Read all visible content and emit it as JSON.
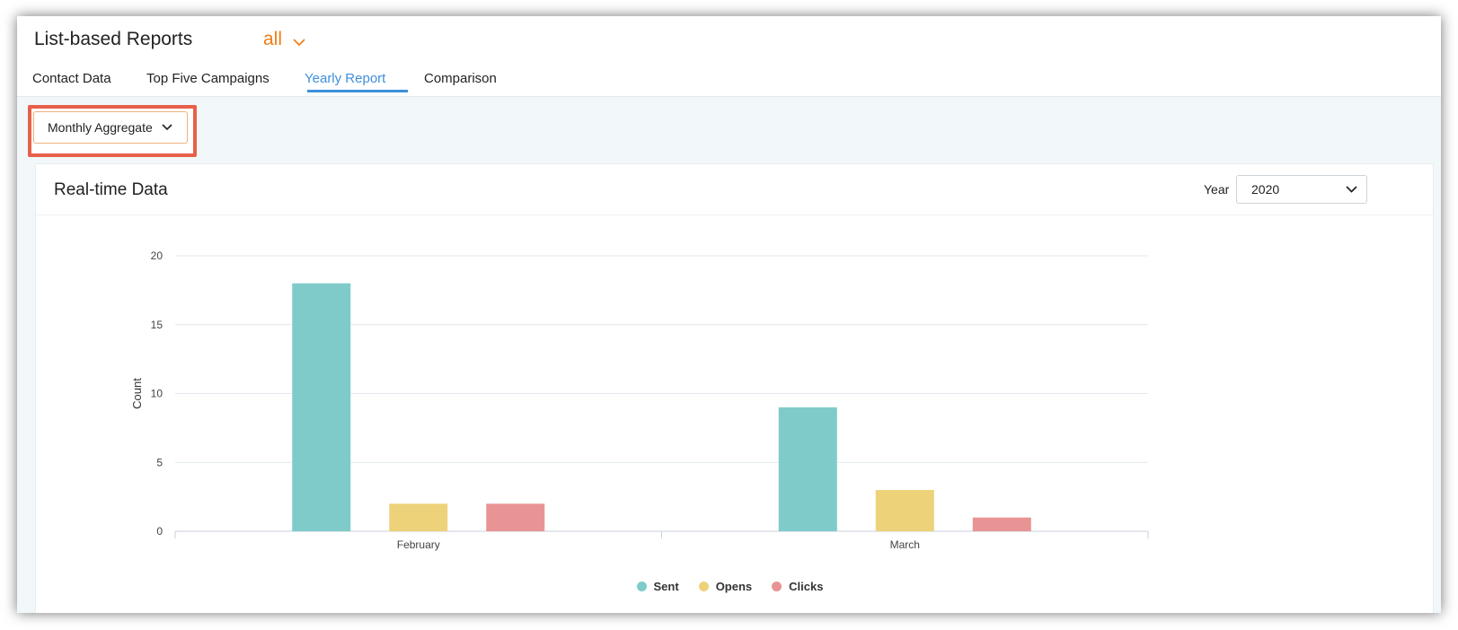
{
  "header": {
    "title": "List-based Reports",
    "list_filter": "all"
  },
  "tabs": [
    {
      "label": "Contact Data",
      "active": false
    },
    {
      "label": "Top Five Campaigns",
      "active": false
    },
    {
      "label": "Yearly Report",
      "active": true
    },
    {
      "label": "Comparison",
      "active": false
    }
  ],
  "aggregate_dropdown": {
    "value": "Monthly Aggregate"
  },
  "card": {
    "title": "Real-time Data",
    "year_label": "Year",
    "year_value": "2020"
  },
  "colors": {
    "accent_orange": "#f07f16",
    "tab_active": "#3d8fdb",
    "highlight": "#e8604a",
    "sent": "#7ecbca",
    "opens": "#edd27a",
    "clicks": "#e99494"
  },
  "icons": {
    "list_filter": "chevron-down-icon",
    "aggregate": "chevron-down-icon",
    "year": "chevron-down-icon"
  },
  "chart_data": {
    "type": "bar",
    "categories": [
      "February",
      "March"
    ],
    "series": [
      {
        "name": "Sent",
        "values": [
          18,
          9
        ],
        "color": "#7ecbca"
      },
      {
        "name": "Opens",
        "values": [
          2,
          3
        ],
        "color": "#edd27a"
      },
      {
        "name": "Clicks",
        "values": [
          2,
          1
        ],
        "color": "#e99494"
      }
    ],
    "ylabel": "Count",
    "xlabel": "",
    "ylim": [
      0,
      20
    ],
    "yticks": [
      0,
      5,
      10,
      15,
      20
    ],
    "grid": true,
    "legend_position": "bottom-center"
  }
}
